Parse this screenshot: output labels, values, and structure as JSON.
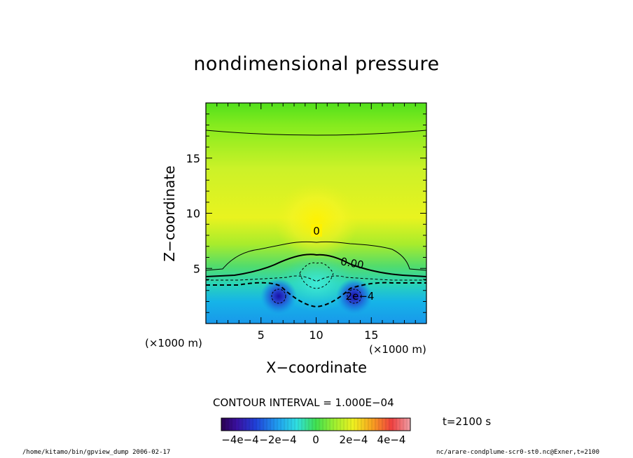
{
  "chart_data": {
    "type": "heatmap",
    "title": "nondimensional pressure",
    "xlabel": "X−coordinate",
    "ylabel": "Z−coordinate",
    "x_unit": "(×1000 m)",
    "y_unit": "(×1000 m)",
    "xlim": [
      0,
      20
    ],
    "ylim": [
      0,
      20
    ],
    "x_ticks": [
      5,
      10,
      15
    ],
    "x_tick_labels": [
      "5",
      "10",
      "15"
    ],
    "y_ticks": [
      5,
      10,
      15
    ],
    "y_tick_labels": [
      "5",
      "10",
      "15"
    ],
    "contour_labels": [
      "0",
      "0.00",
      "2e−4"
    ],
    "contour_interval_text": "CONTOUR INTERVAL = 1.000E−04",
    "colorbar": {
      "range": [
        -0.0005,
        0.0005
      ],
      "tick_values": [
        -0.0004,
        -0.0002,
        0,
        0.0002,
        0.0004
      ],
      "tick_labels": [
        "−4e−4",
        "−2e−4",
        "0",
        "2e−4",
        "4e−4"
      ]
    },
    "time_label": "t=2100 s"
  },
  "footer": {
    "left": "/home/kitamo/bin/gpview_dump  2006-02-17",
    "right": "nc/arare-condplume-scr0-st0.nc@Exner,t=2100"
  }
}
